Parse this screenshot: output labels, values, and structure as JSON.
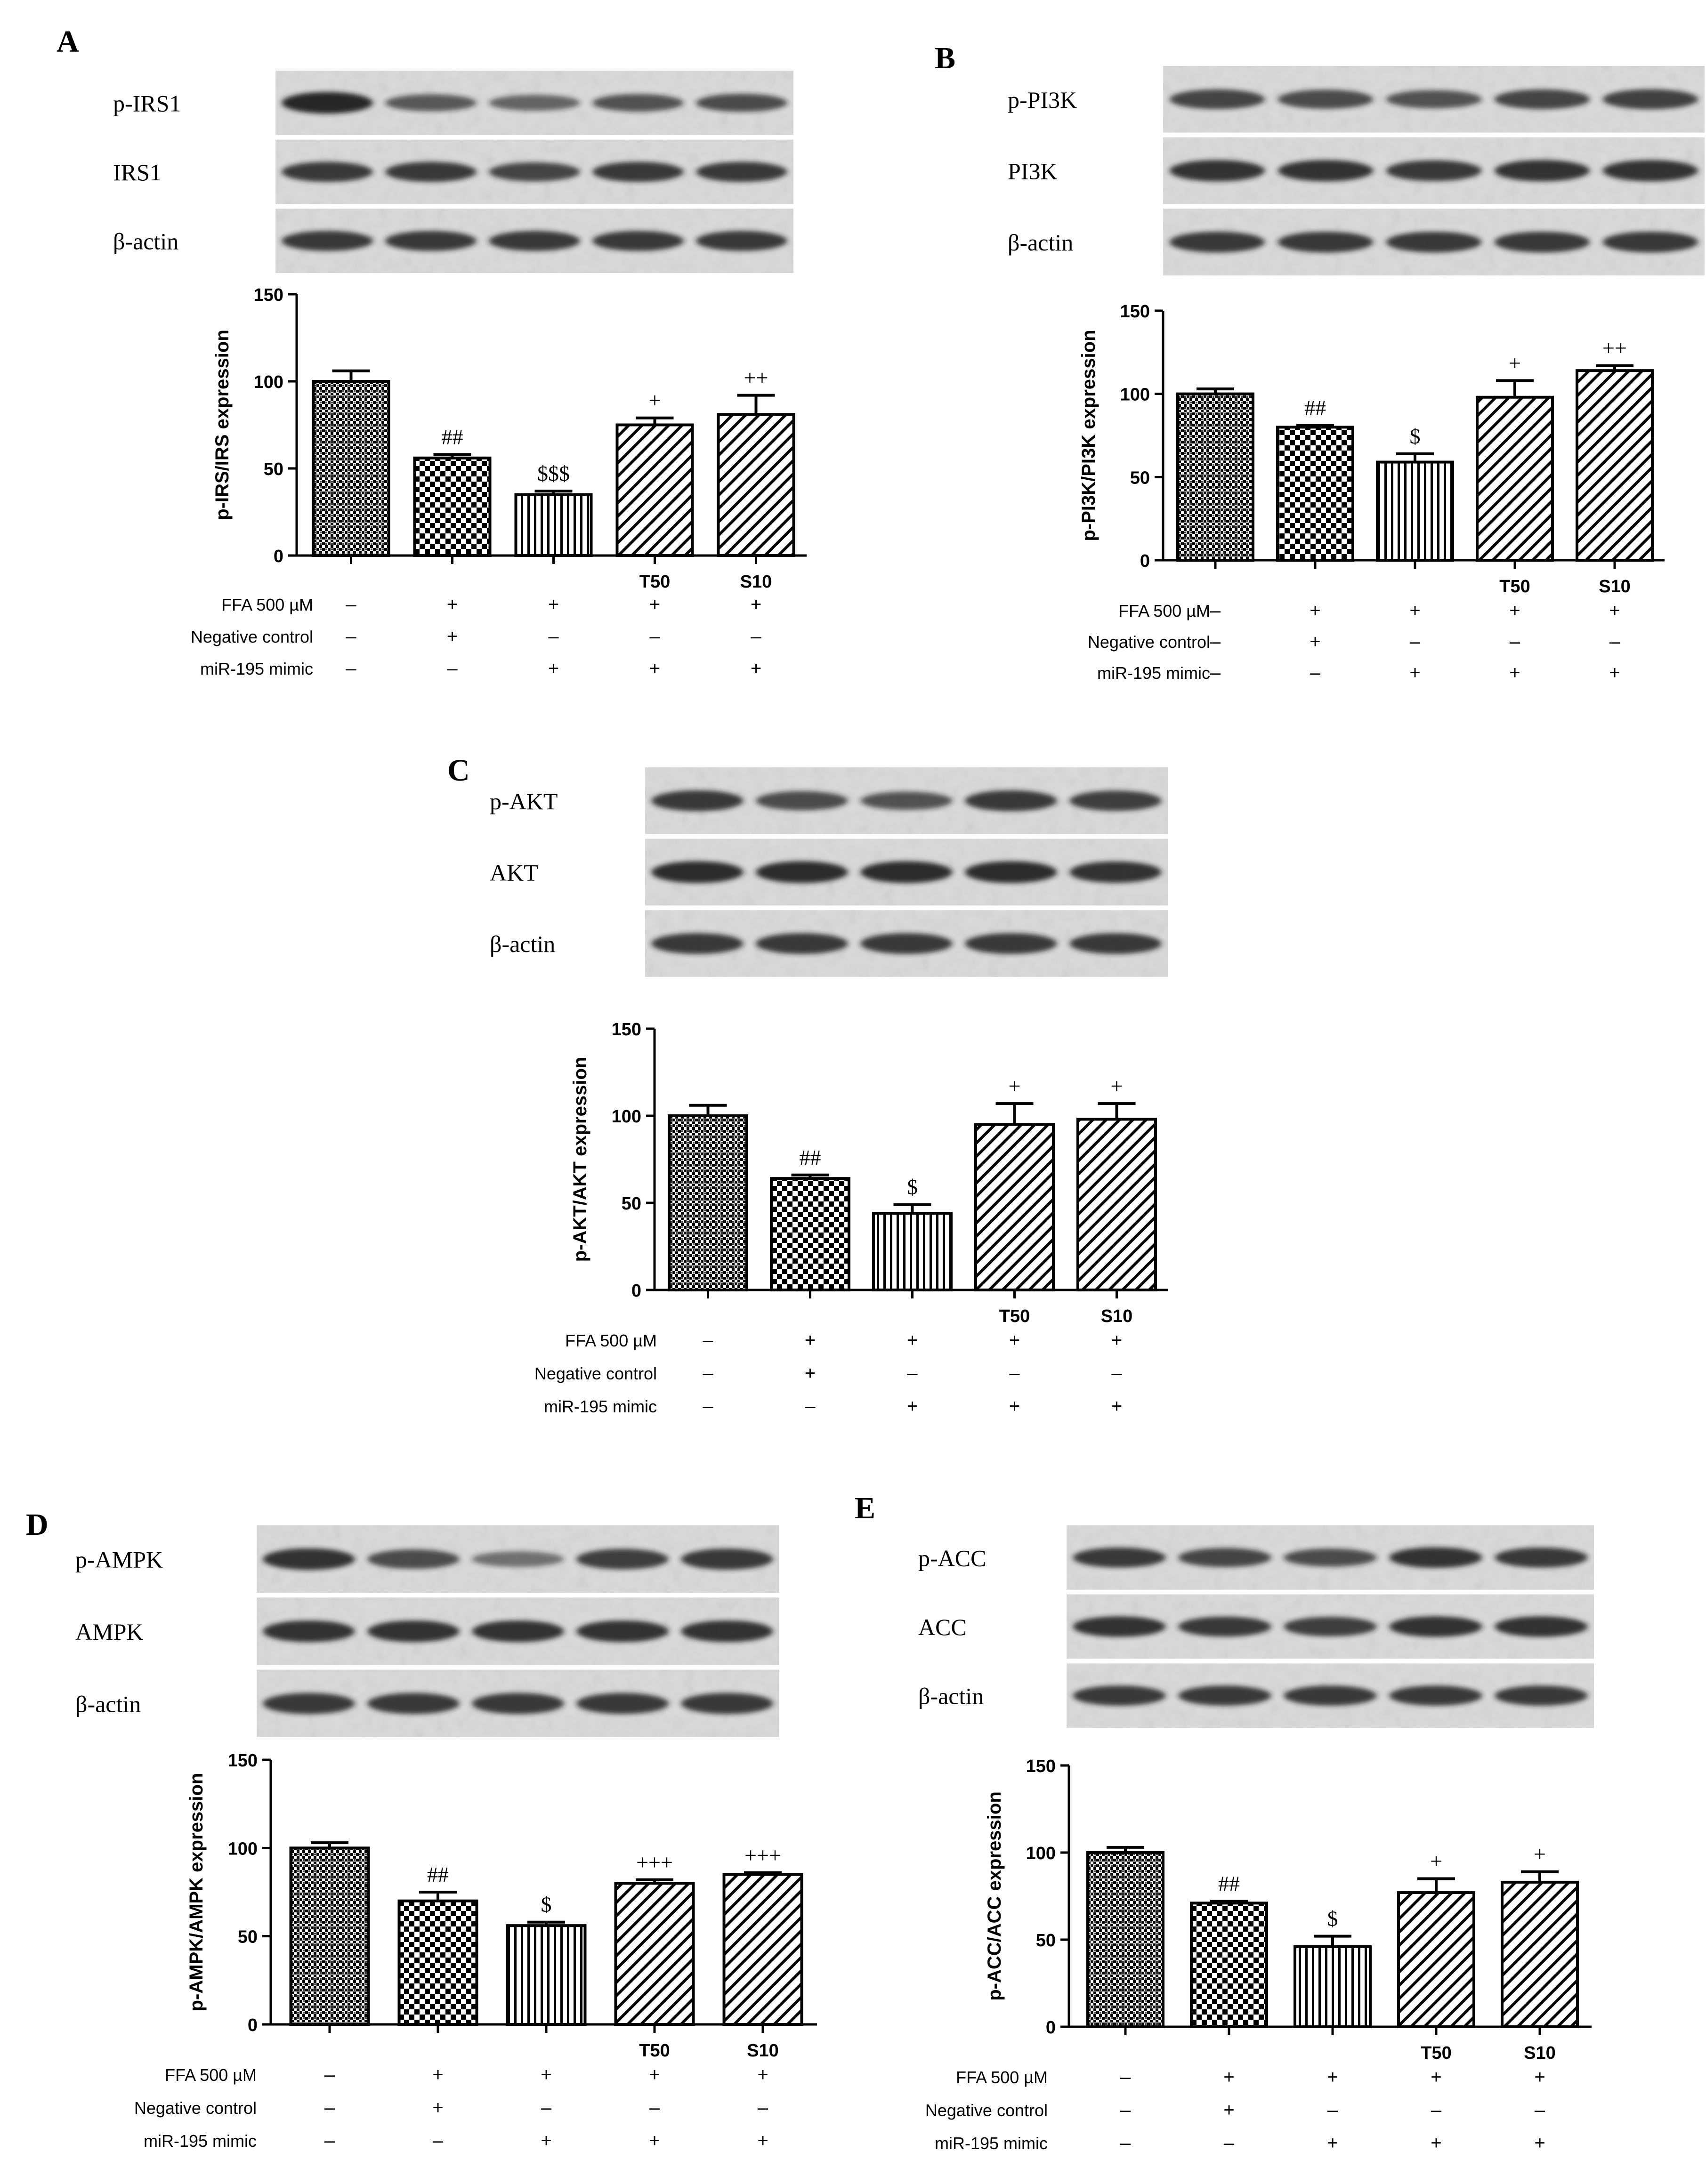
{
  "colors": {
    "ink": "#000000",
    "blot_bg": "#d9d9d9",
    "band": "#1e1e1e",
    "background": "#ffffff"
  },
  "row_labels": [
    "FFA 500 µM",
    "Negative control",
    "miR-195 mimic"
  ],
  "panels": [
    {
      "letter": "A",
      "blot_labels": [
        "p-IRS1",
        "IRS1",
        "β-actin"
      ],
      "blot_intensity": [
        [
          1.0,
          0.55,
          0.45,
          0.6,
          0.65
        ],
        [
          0.85,
          0.85,
          0.75,
          0.85,
          0.85
        ],
        [
          0.85,
          0.85,
          0.85,
          0.85,
          0.85
        ]
      ],
      "chart_data": {
        "type": "bar",
        "ylabel": "p-IRS/IRS expression",
        "ylim": [
          0,
          150
        ],
        "yticks": [
          "0",
          "50",
          "100",
          "150"
        ],
        "categories": [
          "",
          "",
          "",
          "T50",
          "S10"
        ],
        "values": [
          100,
          56,
          35,
          75,
          81
        ],
        "errors": [
          6,
          2,
          2,
          4,
          11
        ],
        "annotations": [
          "",
          "##",
          "$$$",
          "+",
          "++"
        ],
        "patterns": [
          "dots",
          "checker",
          "vertical",
          "diag",
          "diag"
        ],
        "treatments": [
          [
            "–",
            "+",
            "+",
            "+",
            "+"
          ],
          [
            "–",
            "+",
            "–",
            "–",
            "–"
          ],
          [
            "–",
            "–",
            "+",
            "+",
            "+"
          ]
        ]
      }
    },
    {
      "letter": "B",
      "blot_labels": [
        "p-PI3K",
        "PI3K",
        "β-actin"
      ],
      "blot_intensity": [
        [
          0.75,
          0.7,
          0.6,
          0.75,
          0.78
        ],
        [
          0.9,
          0.9,
          0.85,
          0.9,
          0.9
        ],
        [
          0.85,
          0.85,
          0.85,
          0.85,
          0.85
        ]
      ],
      "chart_data": {
        "type": "bar",
        "ylabel": "p-PI3K/PI3K expression",
        "ylim": [
          0,
          150
        ],
        "yticks": [
          "0",
          "50",
          "100",
          "150"
        ],
        "categories": [
          "",
          "",
          "",
          "T50",
          "S10"
        ],
        "values": [
          100,
          80,
          59,
          98,
          114
        ],
        "errors": [
          3,
          1,
          5,
          10,
          3
        ],
        "annotations": [
          "",
          "##",
          "$",
          "+",
          "++"
        ],
        "patterns": [
          "dots",
          "checker",
          "vertical",
          "diag",
          "diag"
        ],
        "treatments": [
          [
            "–",
            "+",
            "+",
            "+",
            "+"
          ],
          [
            "–",
            "+",
            "–",
            "–",
            "–"
          ],
          [
            "–",
            "–",
            "+",
            "+",
            "+"
          ]
        ]
      }
    },
    {
      "letter": "C",
      "blot_labels": [
        "p-AKT",
        "AKT",
        "β-actin"
      ],
      "blot_intensity": [
        [
          0.85,
          0.7,
          0.6,
          0.85,
          0.8
        ],
        [
          0.95,
          0.95,
          0.95,
          0.95,
          0.9
        ],
        [
          0.85,
          0.85,
          0.85,
          0.85,
          0.85
        ]
      ],
      "chart_data": {
        "type": "bar",
        "ylabel": "p-AKT/AKT expression",
        "ylim": [
          0,
          150
        ],
        "yticks": [
          "0",
          "50",
          "100",
          "150"
        ],
        "categories": [
          "",
          "",
          "",
          "T50",
          "S10"
        ],
        "values": [
          100,
          64,
          44,
          95,
          98
        ],
        "errors": [
          6,
          2,
          5,
          12,
          9
        ],
        "annotations": [
          "",
          "##",
          "$",
          "+",
          "+"
        ],
        "patterns": [
          "dots",
          "checker",
          "vertical",
          "diag",
          "diag"
        ],
        "treatments": [
          [
            "–",
            "+",
            "+",
            "+",
            "+"
          ],
          [
            "–",
            "+",
            "–",
            "–",
            "–"
          ],
          [
            "–",
            "–",
            "+",
            "+",
            "+"
          ]
        ]
      }
    },
    {
      "letter": "D",
      "blot_labels": [
        "p-AMPK",
        "AMPK",
        "β-actin"
      ],
      "blot_intensity": [
        [
          0.9,
          0.7,
          0.35,
          0.8,
          0.85
        ],
        [
          0.9,
          0.9,
          0.9,
          0.9,
          0.9
        ],
        [
          0.85,
          0.85,
          0.85,
          0.85,
          0.85
        ]
      ],
      "chart_data": {
        "type": "bar",
        "ylabel": "p-AMPK/AMPK expression",
        "ylim": [
          0,
          150
        ],
        "yticks": [
          "0",
          "50",
          "100",
          "150"
        ],
        "categories": [
          "",
          "",
          "",
          "T50",
          "S10"
        ],
        "values": [
          100,
          70,
          56,
          80,
          85
        ],
        "errors": [
          3,
          5,
          2,
          2,
          1
        ],
        "annotations": [
          "",
          "##",
          "$",
          "+++",
          "+++"
        ],
        "patterns": [
          "dots",
          "checker",
          "vertical",
          "diag",
          "diag"
        ],
        "treatments": [
          [
            "–",
            "+",
            "+",
            "+",
            "+"
          ],
          [
            "–",
            "+",
            "–",
            "–",
            "–"
          ],
          [
            "–",
            "–",
            "+",
            "+",
            "+"
          ]
        ]
      }
    },
    {
      "letter": "E",
      "blot_labels": [
        "p-ACC",
        "ACC",
        "β-actin"
      ],
      "blot_intensity": [
        [
          0.85,
          0.75,
          0.65,
          0.9,
          0.85
        ],
        [
          0.9,
          0.85,
          0.8,
          0.9,
          0.9
        ],
        [
          0.85,
          0.85,
          0.85,
          0.85,
          0.85
        ]
      ],
      "chart_data": {
        "type": "bar",
        "ylabel": "p-ACC/ACC expression",
        "ylim": [
          0,
          150
        ],
        "yticks": [
          "0",
          "50",
          "100",
          "150"
        ],
        "categories": [
          "",
          "",
          "",
          "T50",
          "S10"
        ],
        "values": [
          100,
          71,
          46,
          77,
          83
        ],
        "errors": [
          3,
          1,
          6,
          8,
          6
        ],
        "annotations": [
          "",
          "##",
          "$",
          "+",
          "+"
        ],
        "patterns": [
          "dots",
          "checker",
          "vertical",
          "diag",
          "diag"
        ],
        "treatments": [
          [
            "–",
            "+",
            "+",
            "+",
            "+"
          ],
          [
            "–",
            "+",
            "–",
            "–",
            "–"
          ],
          [
            "–",
            "–",
            "+",
            "+",
            "+"
          ]
        ]
      }
    }
  ]
}
